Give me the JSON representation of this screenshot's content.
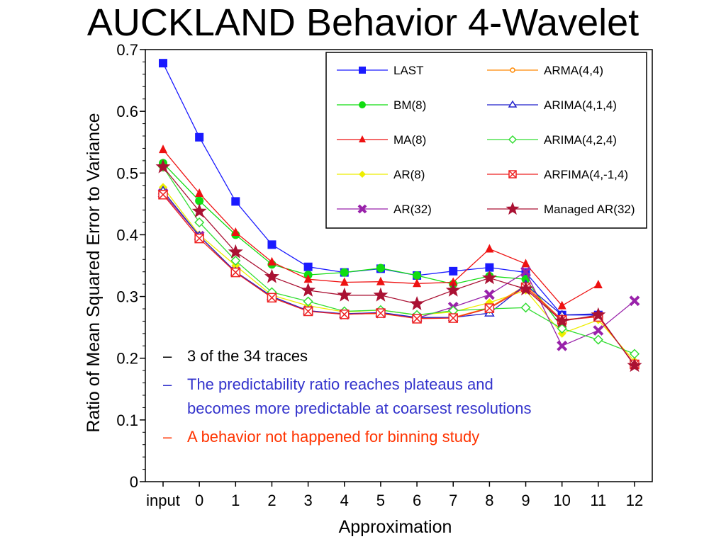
{
  "slide": {
    "title": "AUCKLAND Behavior 4-Wavelet"
  },
  "colors": {
    "LAST": "#1a1aff",
    "BM(8)": "#11dd11",
    "MA(8)": "#ee1111",
    "AR(8)": "#eeee00",
    "AR(32)": "#9922aa",
    "ARMA(4,4)": "#ff8800",
    "ARIMA(4,1,4)": "#2222cc",
    "ARIMA(4,2,4)": "#33dd33",
    "ARFIMA(4,-1,4)": "#ee2222",
    "Managed AR(32)": "#aa1133",
    "note_black": "#000000",
    "note_blue": "#3333cc",
    "note_red": "#ff3300"
  },
  "notes": [
    {
      "dash": "–",
      "text": "3 of the 34 traces",
      "color": "#000000"
    },
    {
      "dash": "–",
      "text": "The predictability ratio reaches plateaus and",
      "text2": "becomes more predictable at coarsest resolutions",
      "color": "#3333cc"
    },
    {
      "dash": "–",
      "text": "A behavior not happened for binning study",
      "color": "#ff3300"
    }
  ],
  "chart_data": {
    "type": "line",
    "xlabel": "Approximation",
    "ylabel": "Ratio of Mean Squared Error to Variance",
    "categories": [
      "input",
      "0",
      "1",
      "2",
      "3",
      "4",
      "5",
      "6",
      "7",
      "8",
      "9",
      "10",
      "11",
      "12"
    ],
    "ylim": [
      0,
      0.7
    ],
    "yticks": [
      "0",
      "0.1",
      "0.2",
      "0.3",
      "0.4",
      "0.5",
      "0.6",
      "0.7"
    ],
    "legend_position": "top-right",
    "series": [
      {
        "name": "LAST",
        "marker": "square",
        "values": [
          0.678,
          0.558,
          0.454,
          0.384,
          0.348,
          0.339,
          0.345,
          0.334,
          0.341,
          0.347,
          0.339,
          0.27,
          0.27,
          null
        ]
      },
      {
        "name": "BM(8)",
        "marker": "circle",
        "values": [
          0.516,
          0.455,
          0.4,
          0.352,
          0.335,
          0.339,
          0.346,
          0.334,
          0.32,
          0.333,
          0.328,
          0.25,
          null,
          null
        ]
      },
      {
        "name": "MA(8)",
        "marker": "triangle",
        "values": [
          0.538,
          0.467,
          0.404,
          0.356,
          0.328,
          0.323,
          0.324,
          0.321,
          0.323,
          0.377,
          0.353,
          0.285,
          0.319,
          null
        ]
      },
      {
        "name": "AR(8)",
        "marker": "diamond",
        "values": [
          0.477,
          0.4,
          0.35,
          0.302,
          0.285,
          0.275,
          0.278,
          0.27,
          0.275,
          0.29,
          0.31,
          0.24,
          0.262,
          0.195
        ]
      },
      {
        "name": "AR(32)",
        "marker": "x",
        "values": [
          0.467,
          0.398,
          0.34,
          0.3,
          0.277,
          0.271,
          0.273,
          0.265,
          0.283,
          0.303,
          0.34,
          0.22,
          0.245,
          0.293
        ]
      },
      {
        "name": "ARMA(4,4)",
        "marker": "open-circle",
        "values": [
          0.47,
          0.398,
          0.339,
          0.299,
          0.276,
          0.272,
          0.272,
          0.265,
          0.266,
          0.282,
          0.318,
          0.262,
          0.268,
          null
        ]
      },
      {
        "name": "ARIMA(4,1,4)",
        "marker": "open-triangle",
        "values": [
          0.471,
          0.398,
          0.34,
          0.3,
          0.277,
          0.272,
          0.274,
          0.266,
          0.266,
          0.273,
          0.319,
          0.27,
          0.272,
          null
        ]
      },
      {
        "name": "ARIMA(4,2,4)",
        "marker": "open-diamond",
        "values": [
          0.51,
          0.42,
          0.358,
          0.307,
          0.292,
          0.276,
          0.278,
          0.27,
          0.277,
          0.28,
          0.282,
          0.248,
          0.23,
          0.207
        ]
      },
      {
        "name": "ARFIMA(4,-1,4)",
        "marker": "boxed-x",
        "values": [
          0.465,
          0.394,
          0.339,
          0.298,
          0.276,
          0.271,
          0.273,
          0.264,
          0.265,
          0.281,
          0.315,
          0.262,
          0.267,
          0.19
        ]
      },
      {
        "name": "Managed AR(32)",
        "marker": "star",
        "values": [
          0.51,
          0.438,
          0.372,
          0.332,
          0.31,
          0.302,
          0.302,
          0.288,
          0.31,
          0.33,
          0.312,
          0.26,
          0.27,
          0.188
        ]
      }
    ]
  }
}
